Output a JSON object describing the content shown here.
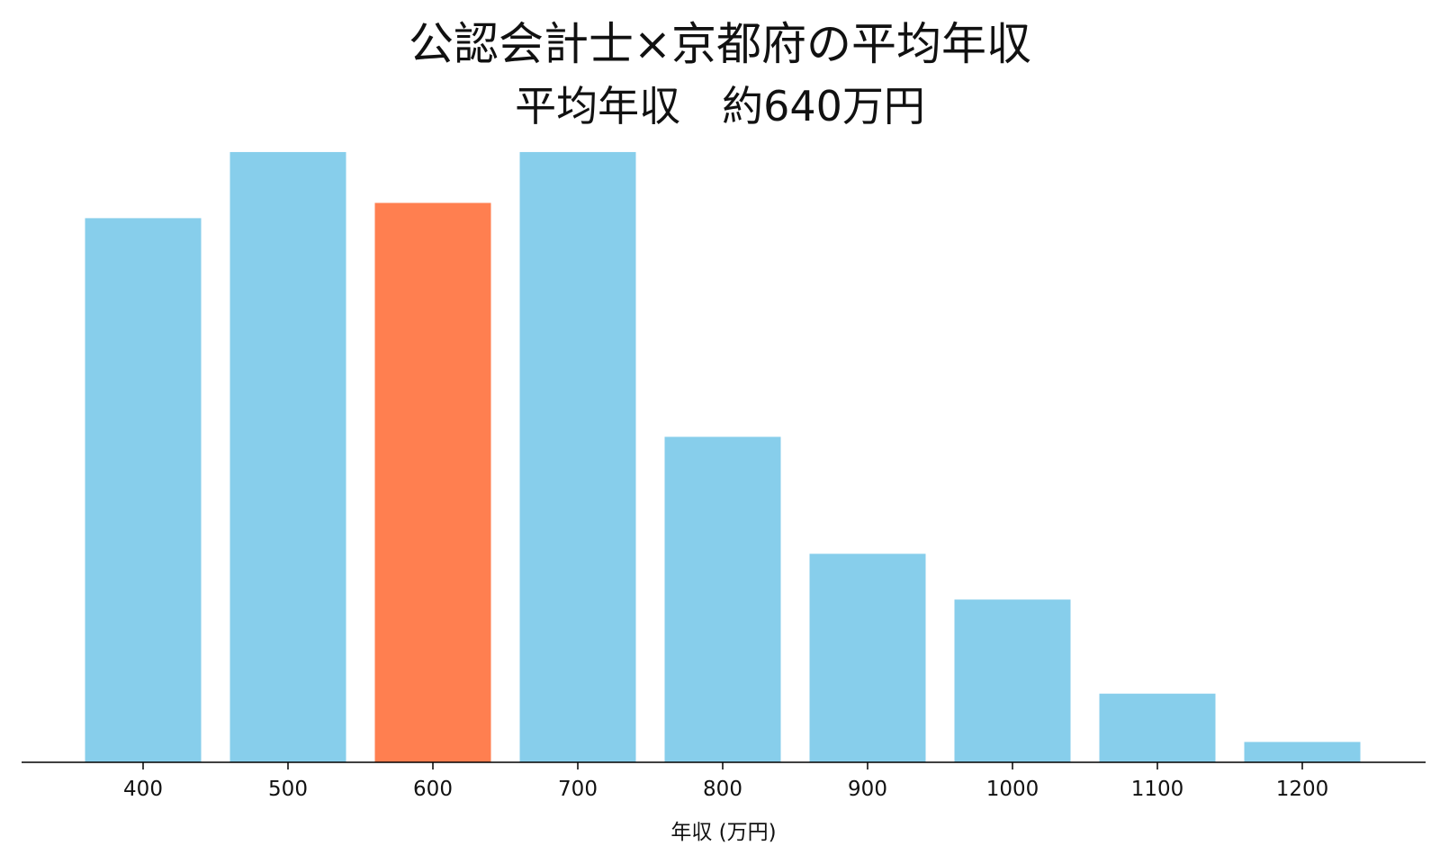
{
  "chart_data": {
    "type": "bar",
    "title": "公認会計士×京都府の平均年収",
    "subtitle": "平均年収　約640万円",
    "xlabel": "年収 (万円)",
    "ylabel": "",
    "categories": [
      "400",
      "500",
      "600",
      "700",
      "800",
      "900",
      "1000",
      "1100",
      "1200"
    ],
    "values": [
      10.7,
      12.0,
      11.0,
      12.0,
      6.4,
      4.1,
      3.2,
      1.35,
      0.4
    ],
    "highlight_category": "600",
    "ylim": [
      0,
      12.3
    ],
    "grid": false,
    "legend": "none",
    "colors": {
      "bar": "#87CEEB",
      "highlight": "#FF7F50",
      "axis": "#000000"
    }
  }
}
